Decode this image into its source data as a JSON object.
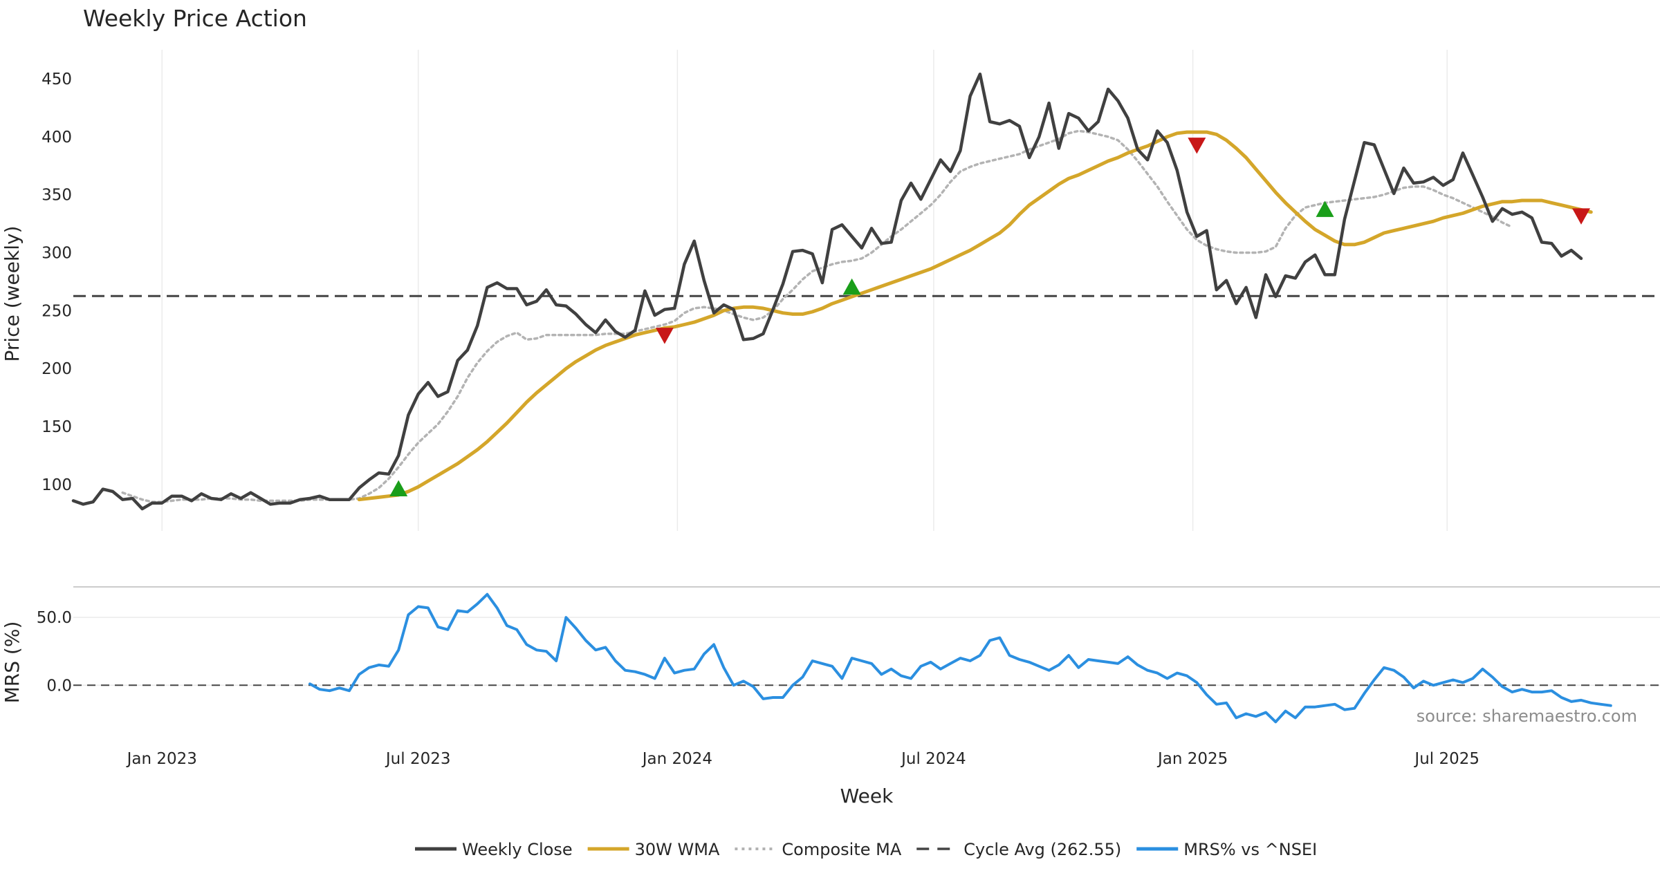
{
  "chart_data": [
    {
      "type": "line",
      "title": "Weekly Price Action",
      "xlabel": "Week",
      "ylabel": "Price (weekly)",
      "ylim": [
        60,
        475
      ],
      "yticks": [
        100,
        150,
        200,
        250,
        300,
        350,
        400,
        450
      ],
      "xticks": [
        {
          "label": "Jan 2023",
          "week": 6
        },
        {
          "label": "Jul 2023",
          "week": 32
        },
        {
          "label": "Jan 2024",
          "week": 58.3
        },
        {
          "label": "Jul 2024",
          "week": 84.3
        },
        {
          "label": "Jan 2025",
          "week": 110.6
        },
        {
          "label": "Jul 2025",
          "week": 136.4
        }
      ],
      "grid": true,
      "x_range_weeks": [
        -3,
        158
      ],
      "reference_line": {
        "name": "Cycle Avg (262.55)",
        "value": 262.55,
        "color": "#444444"
      },
      "series": [
        {
          "name": "Weekly Close",
          "color": "#404040",
          "start_week": -3,
          "values": [
            86,
            83,
            85,
            96,
            94,
            87,
            88,
            79,
            84,
            84,
            90,
            90,
            86,
            92,
            88,
            87,
            92,
            88,
            93,
            88,
            83,
            84,
            84,
            87,
            88,
            90,
            87,
            87,
            87,
            97,
            104,
            110,
            109,
            125,
            160,
            178,
            188,
            176,
            180,
            207,
            216,
            237,
            270,
            274,
            269,
            269,
            255,
            258,
            268,
            255,
            254,
            247,
            238,
            231,
            242,
            232,
            227,
            233,
            267,
            246,
            251,
            252,
            290,
            310,
            276,
            248,
            255,
            251,
            225,
            226,
            230,
            251,
            273,
            301,
            302,
            299,
            274,
            320,
            324,
            314,
            304,
            321,
            308,
            309,
            345,
            360,
            346,
            363,
            380,
            370,
            388,
            435,
            454,
            413,
            411,
            414,
            409,
            382,
            400,
            429,
            390,
            420,
            416,
            405,
            413,
            441,
            431,
            416,
            389,
            380,
            405,
            395,
            371,
            335,
            314,
            319,
            268,
            276,
            256,
            270,
            244,
            281,
            262,
            280,
            278,
            292,
            298,
            281,
            281,
            329,
            362,
            395,
            393,
            372,
            351,
            373,
            360,
            361,
            365,
            358,
            363,
            386,
            367,
            348,
            327,
            338,
            333,
            335,
            330,
            309,
            308,
            297,
            302,
            295
          ]
        },
        {
          "name": "30W WMA",
          "color": "#d4a62a",
          "start_week": 26,
          "values": [
            87,
            88,
            89,
            90,
            91,
            94,
            98,
            103,
            108,
            113,
            118,
            124,
            130,
            137,
            145,
            153,
            162,
            171,
            179,
            186,
            193,
            200,
            206,
            211,
            216,
            220,
            223,
            226,
            229,
            231,
            233,
            235,
            236,
            238,
            240,
            243,
            246,
            250,
            252,
            253,
            253,
            252,
            250,
            248,
            247,
            247,
            249,
            252,
            256,
            259,
            262,
            265,
            268,
            271,
            274,
            277,
            280,
            283,
            286,
            290,
            294,
            298,
            302,
            307,
            312,
            317,
            324,
            333,
            341,
            347,
            353,
            359,
            364,
            367,
            371,
            375,
            379,
            382,
            386,
            389,
            392,
            396,
            400,
            403,
            404,
            404,
            404,
            402,
            397,
            390,
            382,
            372,
            362,
            352,
            343,
            335,
            327,
            320,
            315,
            310,
            307,
            307,
            309,
            313,
            317,
            319,
            321,
            323,
            325,
            327,
            330,
            332,
            334,
            337,
            340,
            342,
            344,
            344,
            345,
            345,
            345,
            343,
            341,
            339,
            337,
            335
          ]
        },
        {
          "name": "Composite MA",
          "color": "#b3b3b3",
          "start_week": 2,
          "values": [
            93,
            90,
            87,
            85,
            85,
            86,
            87,
            87,
            87,
            88,
            88,
            88,
            87,
            87,
            86,
            86,
            86,
            86,
            86,
            87,
            87,
            87,
            87,
            87,
            88,
            92,
            97,
            105,
            115,
            126,
            136,
            144,
            152,
            163,
            176,
            192,
            205,
            215,
            223,
            228,
            231,
            225,
            226,
            229,
            229,
            229,
            229,
            229,
            229,
            230,
            230,
            230,
            232,
            234,
            236,
            238,
            241,
            248,
            252,
            253,
            252,
            250,
            247,
            244,
            242,
            244,
            250,
            260,
            268,
            277,
            284,
            287,
            290,
            292,
            293,
            295,
            300,
            307,
            314,
            320,
            327,
            334,
            341,
            350,
            361,
            370,
            374,
            377,
            379,
            381,
            383,
            385,
            389,
            392,
            395,
            398,
            403,
            405,
            404,
            402,
            400,
            397,
            389,
            379,
            368,
            357,
            344,
            332,
            320,
            311,
            306,
            303,
            301,
            300,
            300,
            300,
            301,
            305,
            321,
            332,
            339,
            341,
            343,
            344,
            345,
            346,
            347,
            348,
            350,
            353,
            356,
            357,
            357,
            354,
            350,
            347,
            343,
            339,
            335,
            331,
            326,
            322
          ]
        },
        {
          "name": "Buy Signal",
          "marker": "triangle-up",
          "color": "#1a9e1a",
          "points": [
            [
              30,
              96
            ],
            [
              76,
              270
            ],
            [
              124,
              337
            ]
          ]
        },
        {
          "name": "Sell Signal",
          "marker": "triangle-down",
          "color": "#c81717",
          "points": [
            [
              57,
              229
            ],
            [
              111,
              393
            ],
            [
              150,
              332
            ]
          ]
        }
      ]
    },
    {
      "type": "line",
      "xlabel": "Week",
      "ylabel": "MRS (%)",
      "ylim": [
        -35,
        72
      ],
      "yticks": [
        0.0,
        50.0
      ],
      "ytick_labels": [
        "0.0",
        "50.0"
      ],
      "reference_line": {
        "value": 0,
        "color": "#444444"
      },
      "series": [
        {
          "name": "MRS% vs ^NSEI",
          "color": "#2b8fe0",
          "start_week": 21,
          "values": [
            1,
            -3,
            -4,
            -2,
            -4,
            8,
            13,
            15,
            14,
            26,
            52,
            58,
            57,
            43,
            41,
            55,
            54,
            60,
            67,
            57,
            44,
            41,
            30,
            26,
            25,
            18,
            50,
            42,
            33,
            26,
            28,
            18,
            11,
            10,
            8,
            5,
            20,
            9,
            11,
            12,
            23,
            30,
            13,
            0,
            3,
            -1,
            -10,
            -9,
            -9,
            0,
            6,
            18,
            16,
            14,
            5,
            20,
            18,
            16,
            8,
            12,
            7,
            5,
            14,
            17,
            12,
            16,
            20,
            18,
            22,
            33,
            35,
            22,
            19,
            17,
            14,
            11,
            15,
            22,
            13,
            19,
            18,
            17,
            16,
            21,
            15,
            11,
            9,
            5,
            9,
            7,
            2,
            -7,
            -14,
            -13,
            -24,
            -21,
            -23,
            -20,
            -27,
            -19,
            -24,
            -16,
            -16,
            -15,
            -14,
            -18,
            -17,
            -6,
            4,
            13,
            11,
            6,
            -2,
            3,
            0,
            2,
            4,
            2,
            5,
            12,
            6,
            -1,
            -5,
            -3,
            -5,
            -5,
            -4,
            -9,
            -12,
            -11,
            -13,
            -14,
            -15
          ]
        }
      ]
    }
  ],
  "legend": [
    {
      "label": "Weekly Close",
      "color": "#404040",
      "style": "solid"
    },
    {
      "label": "30W WMA",
      "color": "#d4a62a",
      "style": "solid"
    },
    {
      "label": "Composite MA",
      "color": "#b3b3b3",
      "style": "dotted"
    },
    {
      "label": "Cycle Avg (262.55)",
      "color": "#444444",
      "style": "dashed"
    },
    {
      "label": "MRS% vs ^NSEI",
      "color": "#2b8fe0",
      "style": "solid"
    }
  ],
  "source": "source: sharemaestro.com"
}
